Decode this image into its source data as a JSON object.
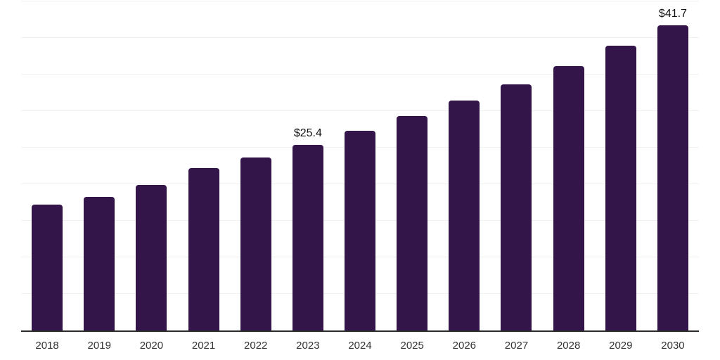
{
  "chart": {
    "background": "#ffffff",
    "bar_color": "#33154a",
    "grid_color": "#f3f0f5",
    "axis_color": "#2b2b2b",
    "tick_label_color": "#333333",
    "value_label_color": "#111111"
  },
  "chart_data": {
    "type": "bar",
    "title": "",
    "xlabel": "",
    "ylabel": "",
    "categories": [
      "2018",
      "2019",
      "2020",
      "2021",
      "2022",
      "2023",
      "2024",
      "2025",
      "2026",
      "2027",
      "2028",
      "2029",
      "2030"
    ],
    "values": [
      17.2,
      18.3,
      19.9,
      22.2,
      23.7,
      25.4,
      27.3,
      29.3,
      31.4,
      33.7,
      36.2,
      38.9,
      41.7
    ],
    "value_labels": {
      "2023": "$25.4",
      "2030": "$41.7"
    },
    "ylim": [
      0,
      45
    ],
    "grid_step": 5,
    "grid": true,
    "legend": false,
    "y_axis_tick_labels_visible": false
  }
}
